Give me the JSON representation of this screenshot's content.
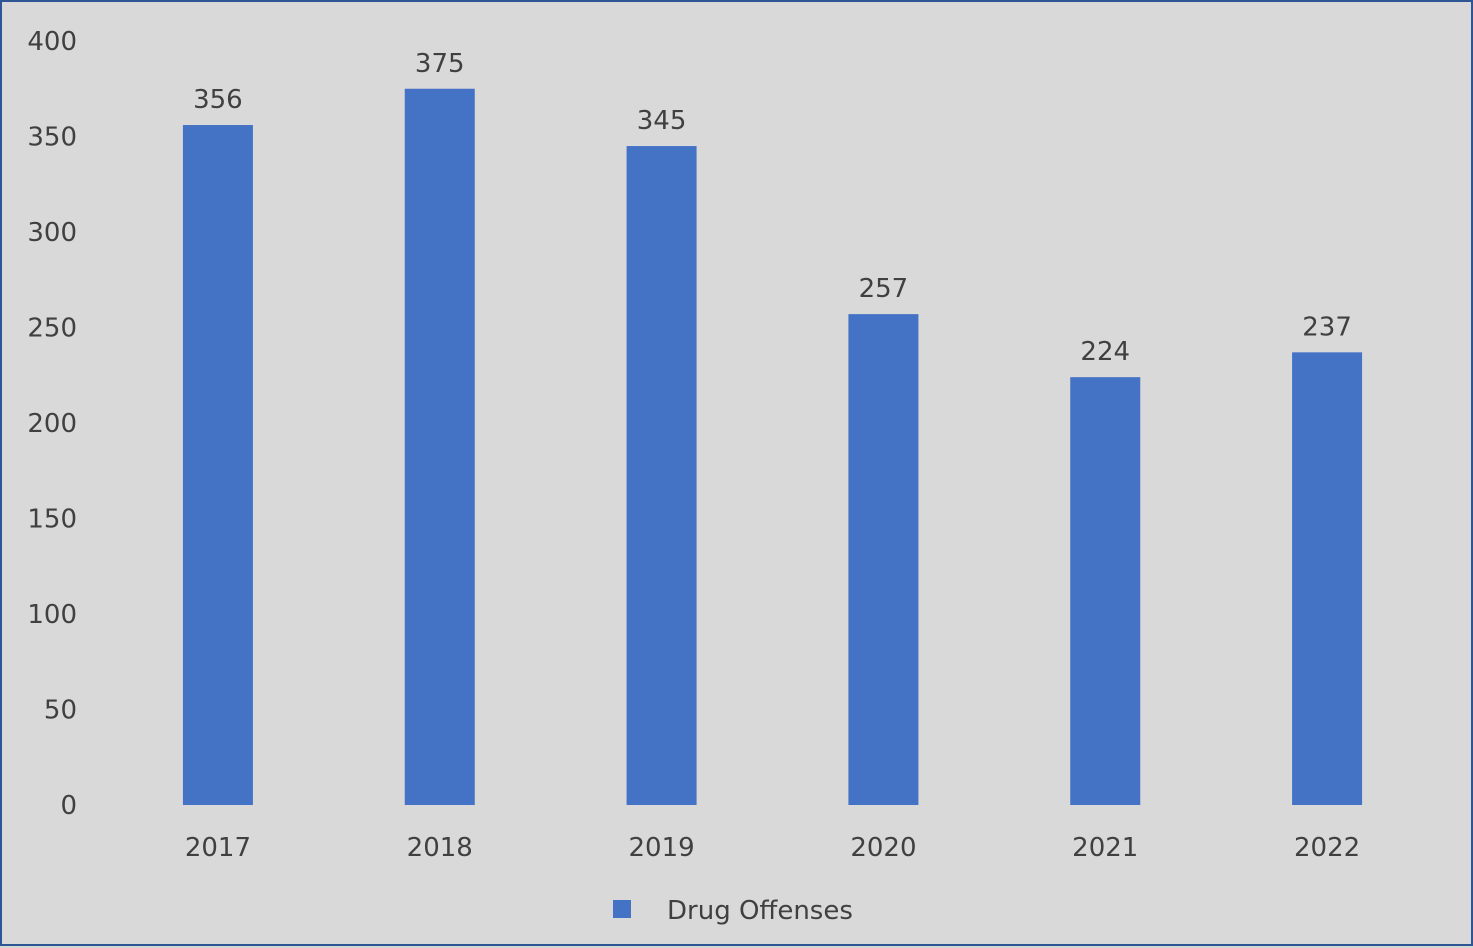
{
  "chart_data": {
    "type": "bar",
    "title": "",
    "xlabel": "",
    "ylabel": "",
    "categories": [
      "2017",
      "2018",
      "2019",
      "2020",
      "2021",
      "2022"
    ],
    "series": [
      {
        "name": "Drug Offenses",
        "values": [
          356,
          375,
          345,
          257,
          224,
          237
        ],
        "color": "#4472c4"
      }
    ],
    "ylim": [
      0,
      400
    ],
    "yticks": [
      0,
      50,
      100,
      150,
      200,
      250,
      300,
      350,
      400
    ],
    "grid": false,
    "data_labels": true,
    "legend_position": "bottom"
  },
  "colors": {
    "background": "#d9d9d9",
    "border": "#2f5597",
    "text": "#404040"
  }
}
